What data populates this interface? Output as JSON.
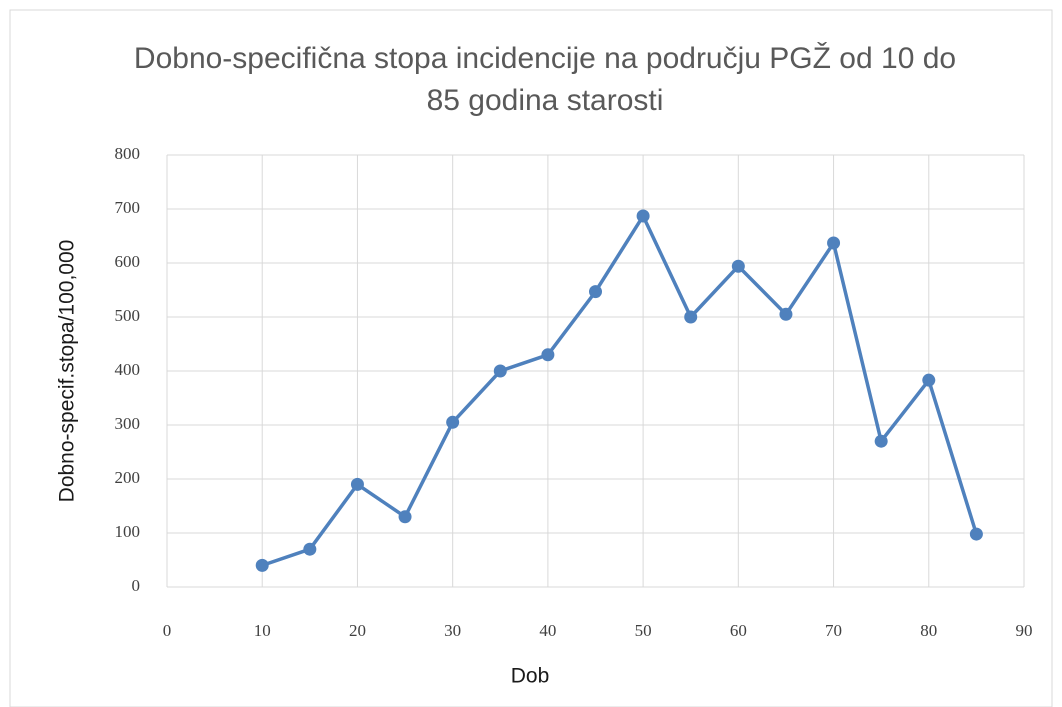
{
  "chart_data": {
    "type": "line",
    "title": "Dobno-specifična stopa incidencije na području PGŽ od 10 do 85 godina starosti",
    "xlabel": "Dob",
    "ylabel": "Dobno-specif.stopa/100,000",
    "x": [
      10,
      15,
      20,
      25,
      30,
      35,
      40,
      45,
      50,
      55,
      60,
      65,
      70,
      75,
      80,
      85
    ],
    "series": [
      {
        "color": "#4f81bd",
        "values": [
          40,
          70,
          190,
          130,
          305,
          400,
          430,
          547,
          687,
          500,
          594,
          505,
          637,
          270,
          383,
          98
        ]
      }
    ],
    "xlim": [
      0,
      90
    ],
    "xticks": [
      0,
      10,
      20,
      30,
      40,
      50,
      60,
      70,
      80,
      90
    ],
    "ylim": [
      0,
      800
    ],
    "yticks": [
      0,
      100,
      200,
      300,
      400,
      500,
      600,
      700,
      800
    ],
    "grid": true
  }
}
